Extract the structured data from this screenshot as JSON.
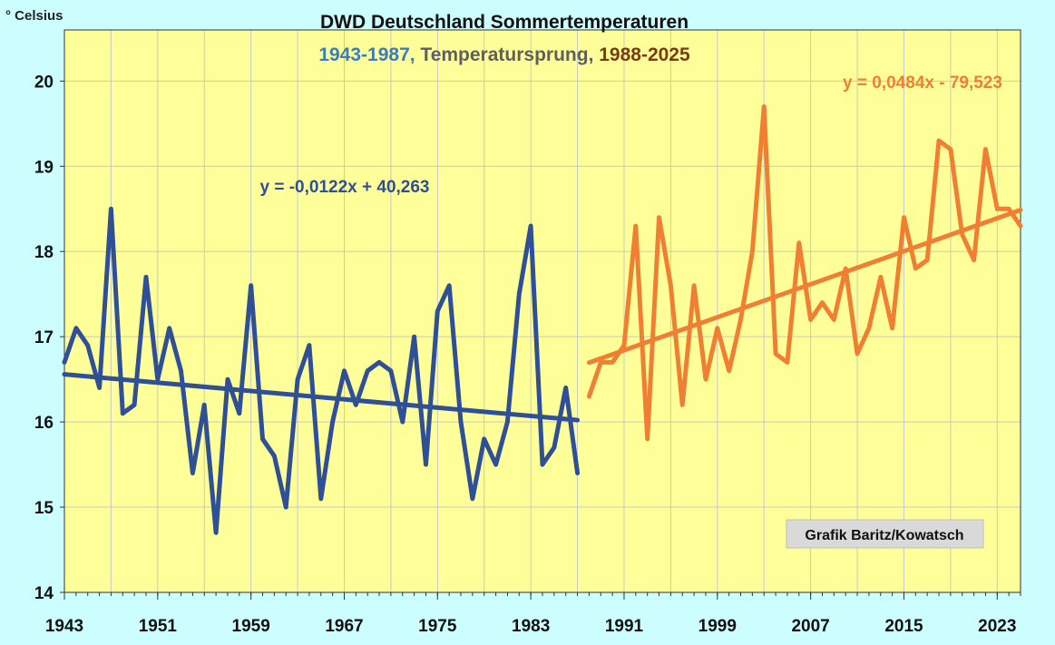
{
  "chart_data": {
    "type": "line",
    "title": "DWD Deutschland Sommertemperaturen",
    "subtitle": {
      "part1": "1943-1987,",
      "part2": " Temperatursprung,",
      "part3": " 1988-2025"
    },
    "ylabel": "° Celsius",
    "xlabel": "",
    "ylim": [
      14,
      20.6
    ],
    "xlim": [
      1943,
      2025
    ],
    "y_ticks": [
      14,
      15,
      16,
      17,
      18,
      19,
      20
    ],
    "y_tick_labels": [
      "14",
      "15",
      "16",
      "17",
      "18",
      "19",
      "20"
    ],
    "x_ticks": [
      1943,
      1951,
      1959,
      1967,
      1975,
      1983,
      1991,
      1999,
      2007,
      2015,
      2023
    ],
    "x_tick_labels": [
      "1943",
      "1951",
      "1959",
      "1967",
      "1975",
      "1983",
      "1991",
      "1999",
      "2007",
      "2015",
      "2023"
    ],
    "grid": true,
    "background_color": "#ffff99",
    "series": [
      {
        "color": "#2f4f96",
        "x": [
          1943,
          1944,
          1945,
          1946,
          1947,
          1948,
          1949,
          1950,
          1951,
          1952,
          1953,
          1954,
          1955,
          1956,
          1957,
          1958,
          1959,
          1960,
          1961,
          1962,
          1963,
          1964,
          1965,
          1966,
          1967,
          1968,
          1969,
          1970,
          1971,
          1972,
          1973,
          1974,
          1975,
          1976,
          1977,
          1978,
          1979,
          1980,
          1981,
          1982,
          1983,
          1984,
          1985,
          1986,
          1987
        ],
        "values": [
          16.7,
          17.1,
          16.9,
          16.4,
          18.5,
          16.1,
          16.2,
          17.7,
          16.5,
          17.1,
          16.6,
          15.4,
          16.2,
          14.7,
          16.5,
          16.1,
          17.6,
          15.8,
          15.6,
          15.0,
          16.5,
          16.9,
          15.1,
          16.0,
          16.6,
          16.2,
          16.6,
          16.7,
          16.6,
          16.0,
          17.0,
          15.5,
          17.3,
          17.6,
          16.0,
          15.1,
          15.8,
          15.5,
          16.0,
          17.5,
          18.3,
          15.5,
          15.7,
          16.4,
          15.4
        ]
      },
      {
        "color": "#f07f34",
        "x": [
          1988,
          1989,
          1990,
          1991,
          1992,
          1993,
          1994,
          1995,
          1996,
          1997,
          1998,
          1999,
          2000,
          2001,
          2002,
          2003,
          2004,
          2005,
          2006,
          2007,
          2008,
          2009,
          2010,
          2011,
          2012,
          2013,
          2014,
          2015,
          2016,
          2017,
          2018,
          2019,
          2020,
          2021,
          2022,
          2023,
          2024,
          2025
        ],
        "values": [
          16.3,
          16.7,
          16.7,
          16.9,
          18.3,
          15.8,
          18.4,
          17.6,
          16.2,
          17.6,
          16.5,
          17.1,
          16.6,
          17.2,
          18.0,
          19.7,
          16.8,
          16.7,
          18.1,
          17.2,
          17.4,
          17.2,
          17.8,
          16.8,
          17.1,
          17.7,
          17.1,
          18.4,
          17.8,
          17.9,
          19.3,
          19.2,
          18.2,
          17.9,
          19.2,
          18.5,
          18.5,
          18.3
        ]
      }
    ],
    "trendlines": [
      {
        "color": "#2f4f96",
        "x": [
          1943,
          1987
        ],
        "slope": -0.0122,
        "intercept": 40.263,
        "label": "y = -0,0122x + 40,263"
      },
      {
        "color": "#f07f34",
        "x": [
          1988,
          2025
        ],
        "slope": 0.0484,
        "intercept": -79.523,
        "label": "y = 0,0484x - 79,523"
      }
    ],
    "annotation": "Grafik Baritz/Kowatsch"
  }
}
